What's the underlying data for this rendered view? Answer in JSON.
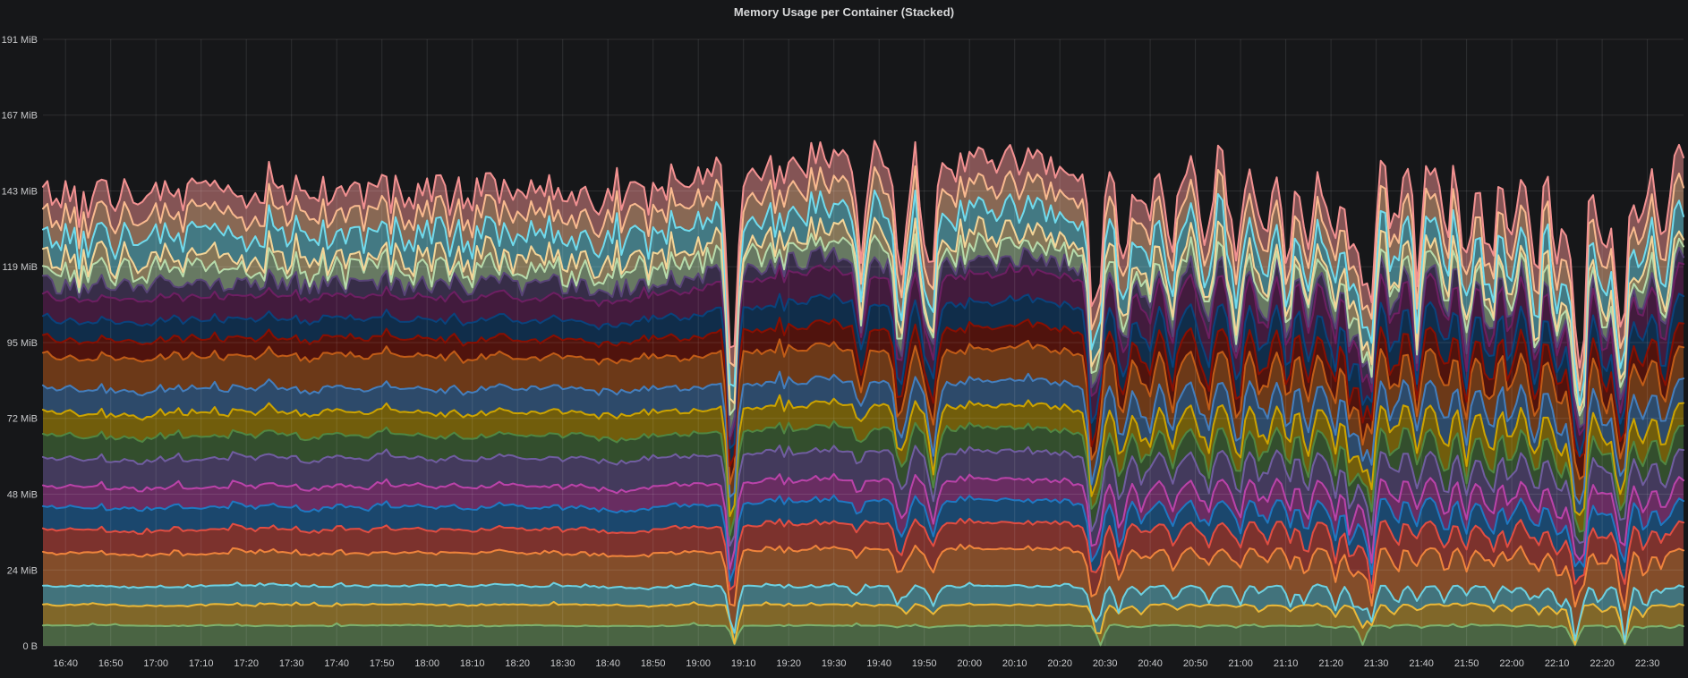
{
  "title": "Memory Usage per Container (Stacked)",
  "colors": {
    "background": "#161719",
    "title_text": "#d8d9da",
    "axis_text": "#c9cacc",
    "grid": "rgba(255,255,255,0.10)"
  },
  "chart_data": {
    "type": "area",
    "stacked": true,
    "title": "Memory Usage per Container (Stacked)",
    "legend": "none",
    "grid": "on",
    "seed": 42,
    "time": {
      "start": "16:35",
      "end": "22:38",
      "step_min": 1,
      "points": 364
    },
    "x_ticks": {
      "first_tick_minute": 5,
      "minutes_per_tick": 10,
      "labels": [
        "16:40",
        "16:50",
        "17:00",
        "17:10",
        "17:20",
        "17:30",
        "17:40",
        "17:50",
        "18:00",
        "18:10",
        "18:20",
        "18:30",
        "18:40",
        "18:50",
        "19:00",
        "19:10",
        "19:20",
        "19:30",
        "19:40",
        "19:50",
        "20:00",
        "20:10",
        "20:20",
        "20:30",
        "20:40",
        "20:50",
        "21:00",
        "21:10",
        "21:20",
        "21:30",
        "21:40",
        "21:50",
        "22:00",
        "22:10",
        "22:20",
        "22:30"
      ]
    },
    "y_axis": {
      "unit": "MiB",
      "max_mib": 190.73,
      "ticks": [
        {
          "label": "0 B",
          "mib": 0
        },
        {
          "label": "24 MiB",
          "mib": 23.84
        },
        {
          "label": "48 MiB",
          "mib": 47.68
        },
        {
          "label": "72 MiB",
          "mib": 71.53
        },
        {
          "label": "95 MiB",
          "mib": 95.37
        },
        {
          "label": "119 MiB",
          "mib": 119.21
        },
        {
          "label": "143 MiB",
          "mib": 143.05
        },
        {
          "label": "167 MiB",
          "mib": 166.89
        },
        {
          "label": "191 MiB",
          "mib": 190.73
        }
      ]
    },
    "approx_total_mib": {
      "16:40": 143,
      "19:30": 154,
      "22:30": 151
    },
    "series_order": "bottom_to_top",
    "series": [
      {
        "color": "#7EB26D",
        "base_mib": 6.3,
        "amp_mib": 0.45,
        "ramp_mib": 0,
        "jagged": false,
        "dip_a": 0.97,
        "dip_b": 0.12,
        "end_bump": 0
      },
      {
        "color": "#EAB839",
        "base_mib": 6.5,
        "amp_mib": 0.55,
        "ramp_mib": 0,
        "jagged": false,
        "dip_a": 0.97,
        "dip_b": 0.4,
        "end_bump": 0
      },
      {
        "color": "#6ED0E0",
        "base_mib": 5.9,
        "amp_mib": 0.65,
        "ramp_mib": 0,
        "jagged": false,
        "dip_a": 0.95,
        "dip_b": 0.9,
        "end_bump": 0
      },
      {
        "color": "#EF843C",
        "base_mib": 10.3,
        "amp_mib": 0.95,
        "ramp_mib": 1.2,
        "jagged": false,
        "dip_a": 0.5,
        "dip_b": 0.3,
        "end_bump": 0
      },
      {
        "color": "#E24D42",
        "base_mib": 7.4,
        "amp_mib": 0.7,
        "ramp_mib": 0.8,
        "jagged": false,
        "dip_a": 0.5,
        "dip_b": 0.4,
        "end_bump": 0
      },
      {
        "color": "#1F78C1",
        "base_mib": 7.0,
        "amp_mib": 0.75,
        "ramp_mib": 0,
        "jagged": false,
        "dip_a": 0.55,
        "dip_b": 0.5,
        "end_bump": 0
      },
      {
        "color": "#BA43A9",
        "base_mib": 6.5,
        "amp_mib": 0.65,
        "ramp_mib": 0,
        "jagged": false,
        "dip_a": 0.5,
        "dip_b": 0.45,
        "end_bump": 0
      },
      {
        "color": "#705DA0",
        "base_mib": 8.8,
        "amp_mib": 0.7,
        "ramp_mib": 0,
        "jagged": false,
        "dip_a": 0.45,
        "dip_b": 0.3,
        "end_bump": 0
      },
      {
        "color": "#508642",
        "base_mib": 7.2,
        "amp_mib": 0.8,
        "ramp_mib": 0,
        "jagged": false,
        "dip_a": 0.5,
        "dip_b": 0.4,
        "end_bump": 0
      },
      {
        "color": "#CCA300",
        "base_mib": 7.2,
        "amp_mib": 1.0,
        "ramp_mib": 0,
        "jagged": false,
        "dip_a": 0.55,
        "dip_b": 0.55,
        "end_bump": 0
      },
      {
        "color": "#447EBC",
        "base_mib": 7.6,
        "amp_mib": 0.85,
        "ramp_mib": 0,
        "jagged": false,
        "dip_a": 0.5,
        "dip_b": 0.45,
        "end_bump": 0
      },
      {
        "color": "#C15C17",
        "base_mib": 10.0,
        "amp_mib": 1.15,
        "ramp_mib": 0,
        "jagged": false,
        "dip_a": 0.55,
        "dip_b": 0.55,
        "end_bump": 0
      },
      {
        "color": "#890F02",
        "base_mib": 5.5,
        "amp_mib": 0.6,
        "ramp_mib": 1.4,
        "jagged": false,
        "dip_a": 0.5,
        "dip_b": 0.45,
        "end_bump": 0.8
      },
      {
        "color": "#0A437C",
        "base_mib": 6.0,
        "amp_mib": 0.7,
        "ramp_mib": 1.6,
        "jagged": false,
        "dip_a": 0.6,
        "dip_b": 0.6,
        "end_bump": 0.8
      },
      {
        "color": "#6D1F62",
        "base_mib": 7.2,
        "amp_mib": 0.8,
        "ramp_mib": 1.6,
        "jagged": false,
        "dip_a": 0.55,
        "dip_b": 0.55,
        "end_bump": 0.8
      },
      {
        "color": "#584477",
        "base_mib": 3.8,
        "amp_mib": 2.2,
        "ramp_mib": 0,
        "jagged": true,
        "dip_a": 0.4,
        "dip_b": 0.3,
        "end_bump": 0
      },
      {
        "color": "#B7DBAB",
        "base_mib": 4.4,
        "amp_mib": 2.6,
        "ramp_mib": 0,
        "jagged": true,
        "dip_a": 0.4,
        "dip_b": 0.3,
        "end_bump": 0
      },
      {
        "color": "#F4D598",
        "base_mib": 3.6,
        "amp_mib": 2.4,
        "ramp_mib": 0,
        "jagged": true,
        "dip_a": 0.4,
        "dip_b": 0.3,
        "end_bump": 0
      },
      {
        "color": "#70DBED",
        "base_mib": 7.2,
        "amp_mib": 1.5,
        "ramp_mib": 0,
        "jagged": true,
        "dip_a": 0.4,
        "dip_b": 0.45,
        "end_bump": 1.2
      },
      {
        "color": "#F9BA8F",
        "base_mib": 6.6,
        "amp_mib": 0.85,
        "ramp_mib": 0.9,
        "jagged": false,
        "dip_a": 0.3,
        "dip_b": 0.22,
        "end_bump": 1.2
      },
      {
        "color": "#F29191",
        "base_mib": 6.9,
        "amp_mib": 0.95,
        "ramp_mib": 0.9,
        "jagged": false,
        "dip_a": 0.3,
        "dip_b": 0.22,
        "end_bump": 1.2
      }
    ],
    "ramp_window_min": {
      "start": 120,
      "length": 50
    },
    "dip_events": {
      "A_deep_minutes": [
        152,
        232,
        292,
        339,
        348
      ],
      "B_mid_minutes": [
        180,
        189,
        195,
        238,
        243,
        249,
        256,
        263,
        269,
        274,
        279,
        284,
        289,
        298,
        303,
        309,
        314,
        319,
        324,
        329,
        334,
        338,
        344,
        353,
        358
      ]
    },
    "style": {
      "fill_opacity": 0.5,
      "line_width": 2
    }
  }
}
